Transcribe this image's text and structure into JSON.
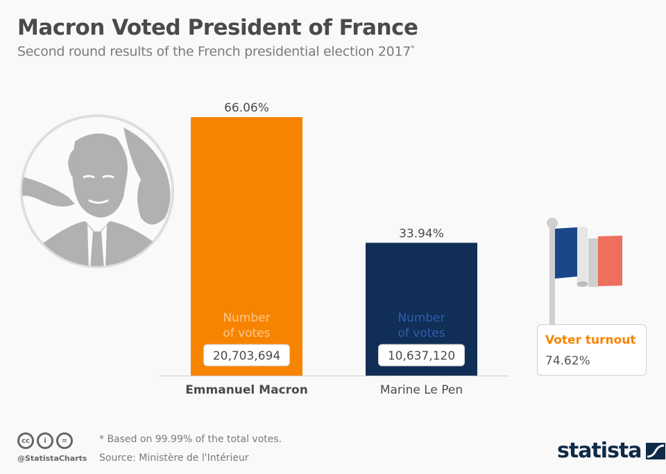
{
  "header": {
    "title": "Macron Voted President of France",
    "subtitle": "Second round results of the French presidential election 2017",
    "subtitle_marker": "*"
  },
  "colors": {
    "macron": "#f78400",
    "le_pen": "#102e56",
    "accent": "#f78400",
    "flag_blue": "#1b4688",
    "flag_white": "#e6e6e6",
    "flag_red": "#ef6f5f"
  },
  "chart_data": {
    "type": "bar",
    "title": "Macron Voted President of France",
    "subtitle": "Second round results of the French presidential election 2017*",
    "categories": [
      "Emmanuel Macron",
      "Marine Le Pen"
    ],
    "values": [
      66.06,
      33.94
    ],
    "value_labels": [
      "66.06%",
      "33.94%"
    ],
    "votes_label_line1": "Number",
    "votes_label_line2": "of votes",
    "votes": [
      "20,703,694",
      "10,637,120"
    ],
    "unit": "%",
    "ylim": [
      0,
      66.06
    ],
    "grid": false,
    "xlabel": "",
    "ylabel": ""
  },
  "turnout": {
    "label": "Voter turnout",
    "value": "74.62%"
  },
  "footer": {
    "note": "* Based on 99.99% of the total votes.",
    "source": "Source: Ministère de l'Intérieur",
    "handle": "@StatistaCharts",
    "license_icons": [
      "cc",
      "by",
      "nd"
    ],
    "license_glyphs": [
      "cc",
      "i",
      "="
    ],
    "brand": "statista"
  }
}
